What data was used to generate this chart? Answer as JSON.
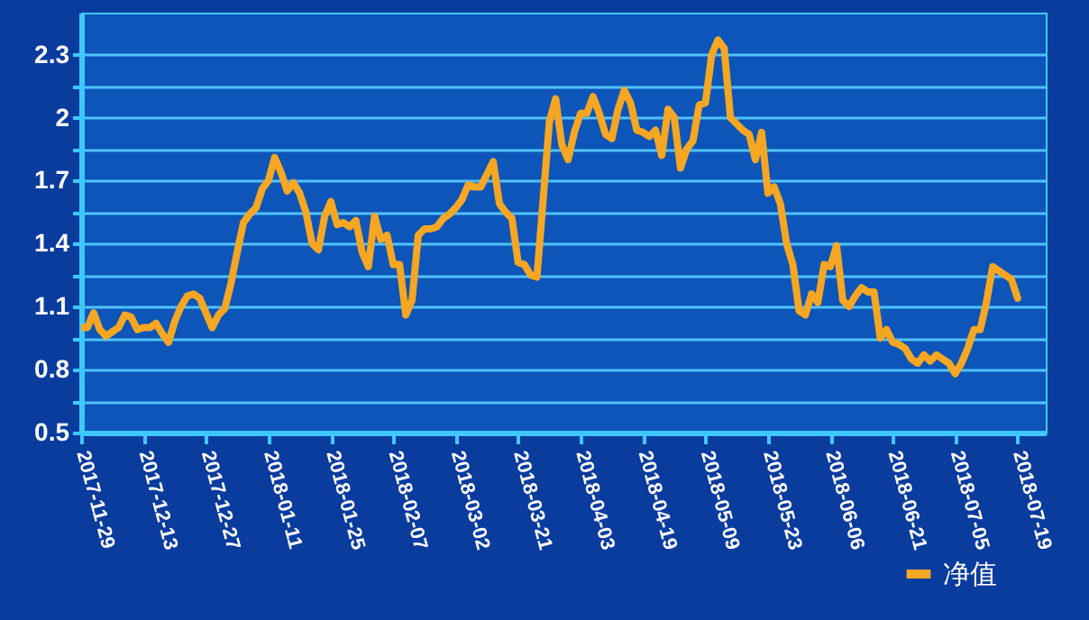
{
  "chart_data": {
    "type": "line",
    "categories": [
      "2017-11-29",
      null,
      null,
      null,
      null,
      null,
      null,
      null,
      null,
      null,
      "2017-12-13",
      null,
      null,
      null,
      null,
      null,
      null,
      null,
      null,
      null,
      "2017-12-27",
      null,
      null,
      null,
      null,
      null,
      null,
      null,
      null,
      null,
      "2018-01-11",
      null,
      null,
      null,
      null,
      null,
      null,
      null,
      null,
      null,
      "2018-01-25",
      null,
      null,
      null,
      null,
      null,
      null,
      null,
      null,
      null,
      "2018-02-07",
      null,
      null,
      null,
      null,
      null,
      null,
      null,
      null,
      null,
      "2018-03-02",
      null,
      null,
      null,
      null,
      null,
      null,
      null,
      null,
      null,
      "2018-03-21",
      null,
      null,
      null,
      null,
      null,
      null,
      null,
      null,
      null,
      "2018-04-03",
      null,
      null,
      null,
      null,
      null,
      null,
      null,
      null,
      null,
      "2018-04-19",
      null,
      null,
      null,
      null,
      null,
      null,
      null,
      null,
      null,
      "2018-05-09",
      null,
      null,
      null,
      null,
      null,
      null,
      null,
      null,
      null,
      "2018-05-23",
      null,
      null,
      null,
      null,
      null,
      null,
      null,
      null,
      null,
      "2018-06-06",
      null,
      null,
      null,
      null,
      null,
      null,
      null,
      null,
      null,
      "2018-06-21",
      null,
      null,
      null,
      null,
      null,
      null,
      null,
      null,
      null,
      "2018-07-05",
      null,
      null,
      null,
      null,
      null,
      null,
      null,
      null,
      null,
      "2018-07-19"
    ],
    "series": [
      {
        "name": "净值",
        "color": "#f5a623",
        "values": [
          1.0,
          1.0,
          1.07,
          0.99,
          0.96,
          0.98,
          1.0,
          1.06,
          1.05,
          0.99,
          1.0,
          1.0,
          1.02,
          0.97,
          0.93,
          1.03,
          1.1,
          1.15,
          1.16,
          1.14,
          1.07,
          1.0,
          1.06,
          1.09,
          1.21,
          1.36,
          1.5,
          1.54,
          1.57,
          1.66,
          1.7,
          1.81,
          1.74,
          1.65,
          1.69,
          1.64,
          1.55,
          1.4,
          1.37,
          1.53,
          1.6,
          1.49,
          1.5,
          1.48,
          1.51,
          1.36,
          1.29,
          1.53,
          1.42,
          1.44,
          1.3,
          1.3,
          1.06,
          1.13,
          1.44,
          1.47,
          1.47,
          1.48,
          1.52,
          1.54,
          1.57,
          1.61,
          1.68,
          1.67,
          1.67,
          1.73,
          1.79,
          1.59,
          1.55,
          1.52,
          1.31,
          1.3,
          1.25,
          1.24,
          1.61,
          1.98,
          2.09,
          1.87,
          1.8,
          1.93,
          2.02,
          2.02,
          2.1,
          2.02,
          1.92,
          1.9,
          2.04,
          2.13,
          2.07,
          1.94,
          1.93,
          1.91,
          1.94,
          1.82,
          2.04,
          2.0,
          1.76,
          1.85,
          1.89,
          2.06,
          2.07,
          2.3,
          2.37,
          2.33,
          2.0,
          1.97,
          1.94,
          1.92,
          1.8,
          1.93,
          1.64,
          1.67,
          1.59,
          1.4,
          1.3,
          1.08,
          1.06,
          1.16,
          1.12,
          1.3,
          1.29,
          1.39,
          1.13,
          1.1,
          1.15,
          1.19,
          1.17,
          1.17,
          0.95,
          0.99,
          0.93,
          0.92,
          0.9,
          0.85,
          0.83,
          0.87,
          0.84,
          0.87,
          0.85,
          0.83,
          0.78,
          0.83,
          0.9,
          0.99,
          0.99,
          1.12,
          1.29,
          1.27,
          1.25,
          1.23,
          1.14
        ]
      }
    ],
    "ylim": [
      0.5,
      2.5
    ],
    "yticks": [
      0.5,
      {
        "value": 0.65,
        "label": null
      },
      0.8,
      {
        "value": 0.95,
        "label": null
      },
      1.1,
      {
        "value": 1.25,
        "label": null
      },
      1.4,
      {
        "value": 1.55,
        "label": null
      },
      1.7,
      {
        "value": 1.85,
        "label": null
      },
      2,
      {
        "value": 2.15,
        "label": null
      },
      2.3
    ],
    "grid": "y",
    "legend": "bottom right"
  }
}
